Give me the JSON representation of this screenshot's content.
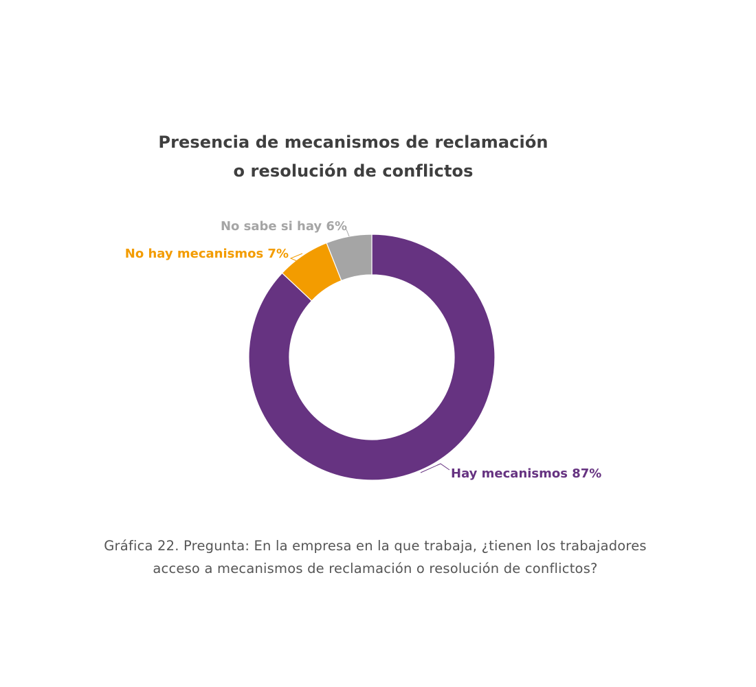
{
  "chart_data": {
    "type": "pie",
    "variant": "donut",
    "title_lines": [
      "Presencia de mecanismos de reclamación",
      "o resolución de conflictos"
    ],
    "slices": [
      {
        "label": "Hay mecanismos 87%",
        "value": 87,
        "color": "#663381",
        "label_color": "#663381"
      },
      {
        "label": "No hay mecanismos 7%",
        "value": 7,
        "color": "#f39c00",
        "label_color": "#f39c00"
      },
      {
        "label": "No sabe si hay 6%",
        "value": 6,
        "color": "#a5a5a5",
        "label_color": "#a5a5a5"
      }
    ]
  },
  "caption_lines": [
    "Gráfica 22. Pregunta: En la empresa en la que trabaja, ¿tienen los trabajadores",
    "acceso a mecanismos de reclamación o resolución de conflictos?"
  ]
}
